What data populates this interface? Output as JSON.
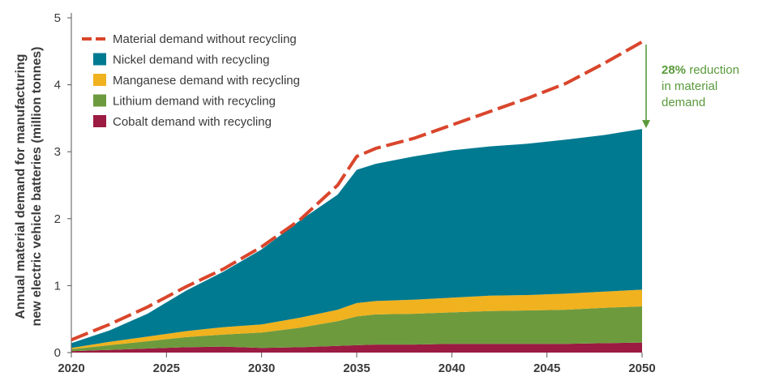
{
  "chart_data": {
    "type": "area",
    "ylabel_lines": [
      "Annual material demand for manufacturing",
      "new electric vehicle batteries (million tonnes)"
    ],
    "xlabel": "",
    "x": [
      2020,
      2022,
      2024,
      2026,
      2028,
      2030,
      2032,
      2034,
      2035,
      2036,
      2038,
      2040,
      2042,
      2044,
      2046,
      2048,
      2050
    ],
    "xticks": [
      2020,
      2025,
      2030,
      2035,
      2040,
      2045,
      2050
    ],
    "yticks": [
      0,
      1,
      2,
      3,
      4,
      5
    ],
    "xlim": [
      2020,
      2050
    ],
    "ylim": [
      0,
      5
    ],
    "legend_position": "top-left",
    "stacked_series": [
      {
        "name": "Cobalt demand with recycling",
        "color": "#9b1b42",
        "values": [
          0.02,
          0.04,
          0.06,
          0.08,
          0.09,
          0.07,
          0.08,
          0.1,
          0.11,
          0.12,
          0.12,
          0.13,
          0.13,
          0.13,
          0.13,
          0.14,
          0.15
        ]
      },
      {
        "name": "Lithium demand with recycling",
        "color": "#6e9a3e",
        "values": [
          0.03,
          0.07,
          0.11,
          0.15,
          0.18,
          0.23,
          0.29,
          0.37,
          0.43,
          0.45,
          0.46,
          0.47,
          0.49,
          0.5,
          0.51,
          0.53,
          0.54
        ]
      },
      {
        "name": "Manganese demand with recycling",
        "color": "#f0b21e",
        "values": [
          0.02,
          0.05,
          0.07,
          0.09,
          0.11,
          0.12,
          0.15,
          0.17,
          0.2,
          0.2,
          0.21,
          0.22,
          0.23,
          0.23,
          0.24,
          0.24,
          0.25
        ]
      },
      {
        "name": "Nickel demand with recycling",
        "color": "#007a91",
        "values": [
          0.07,
          0.17,
          0.34,
          0.6,
          0.83,
          1.12,
          1.45,
          1.72,
          1.99,
          2.05,
          2.14,
          2.2,
          2.23,
          2.26,
          2.3,
          2.34,
          2.4
        ]
      }
    ],
    "line_series": {
      "name": "Material demand without recycling",
      "color": "#d9462c",
      "x": [
        2020,
        2022,
        2024,
        2026,
        2028,
        2030,
        2032,
        2034,
        2035,
        2036,
        2038,
        2040,
        2042,
        2044,
        2046,
        2048,
        2050
      ],
      "values": [
        0.19,
        0.42,
        0.68,
        0.98,
        1.25,
        1.58,
        1.98,
        2.5,
        2.93,
        3.05,
        3.2,
        3.4,
        3.6,
        3.8,
        4.02,
        4.32,
        4.64
      ]
    },
    "annotation": {
      "bold": "28%",
      "line1_rest": " reduction",
      "line2": "in material",
      "line3": "demand",
      "color": "#5a9a3c",
      "arrow_from": 4.6,
      "arrow_to": 3.34
    },
    "legend_order": [
      {
        "name": "Material demand without recycling",
        "kind": "dash",
        "color": "#d9462c"
      },
      {
        "name": "Nickel demand with recycling",
        "kind": "box",
        "color": "#007a91"
      },
      {
        "name": "Manganese demand with recycling",
        "kind": "box",
        "color": "#f0b21e"
      },
      {
        "name": "Lithium demand with recycling",
        "kind": "box",
        "color": "#6e9a3e"
      },
      {
        "name": "Cobalt demand with recycling",
        "kind": "box",
        "color": "#9b1b42"
      }
    ]
  }
}
